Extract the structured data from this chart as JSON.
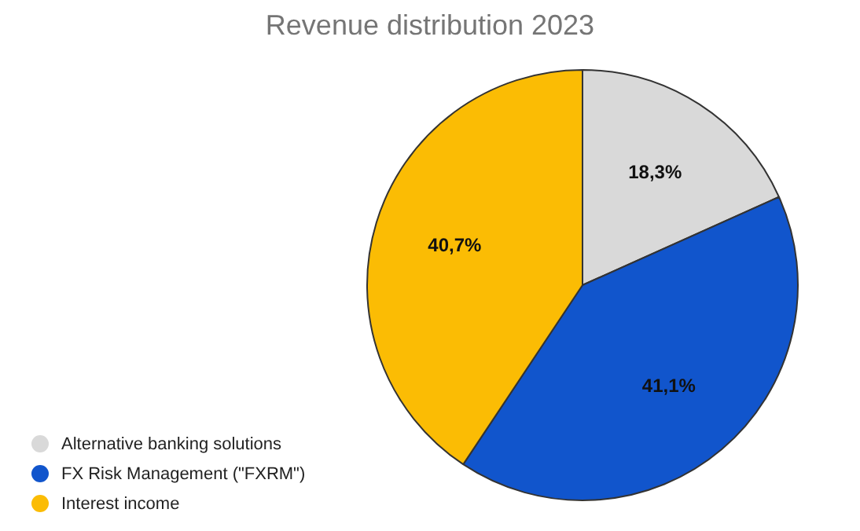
{
  "chart_data": {
    "type": "pie",
    "title": "Revenue distribution 2023",
    "categories": [
      "Alternative banking solutions",
      "FX Risk Management (\"FXRM\")",
      "Interest income"
    ],
    "values": [
      18.3,
      41.1,
      40.7
    ],
    "value_labels": [
      "18,3%",
      "41,1%",
      "40,7%"
    ],
    "colors": [
      "#d9d9d9",
      "#1155cc",
      "#fbbc04"
    ],
    "legend": "bottom left"
  }
}
